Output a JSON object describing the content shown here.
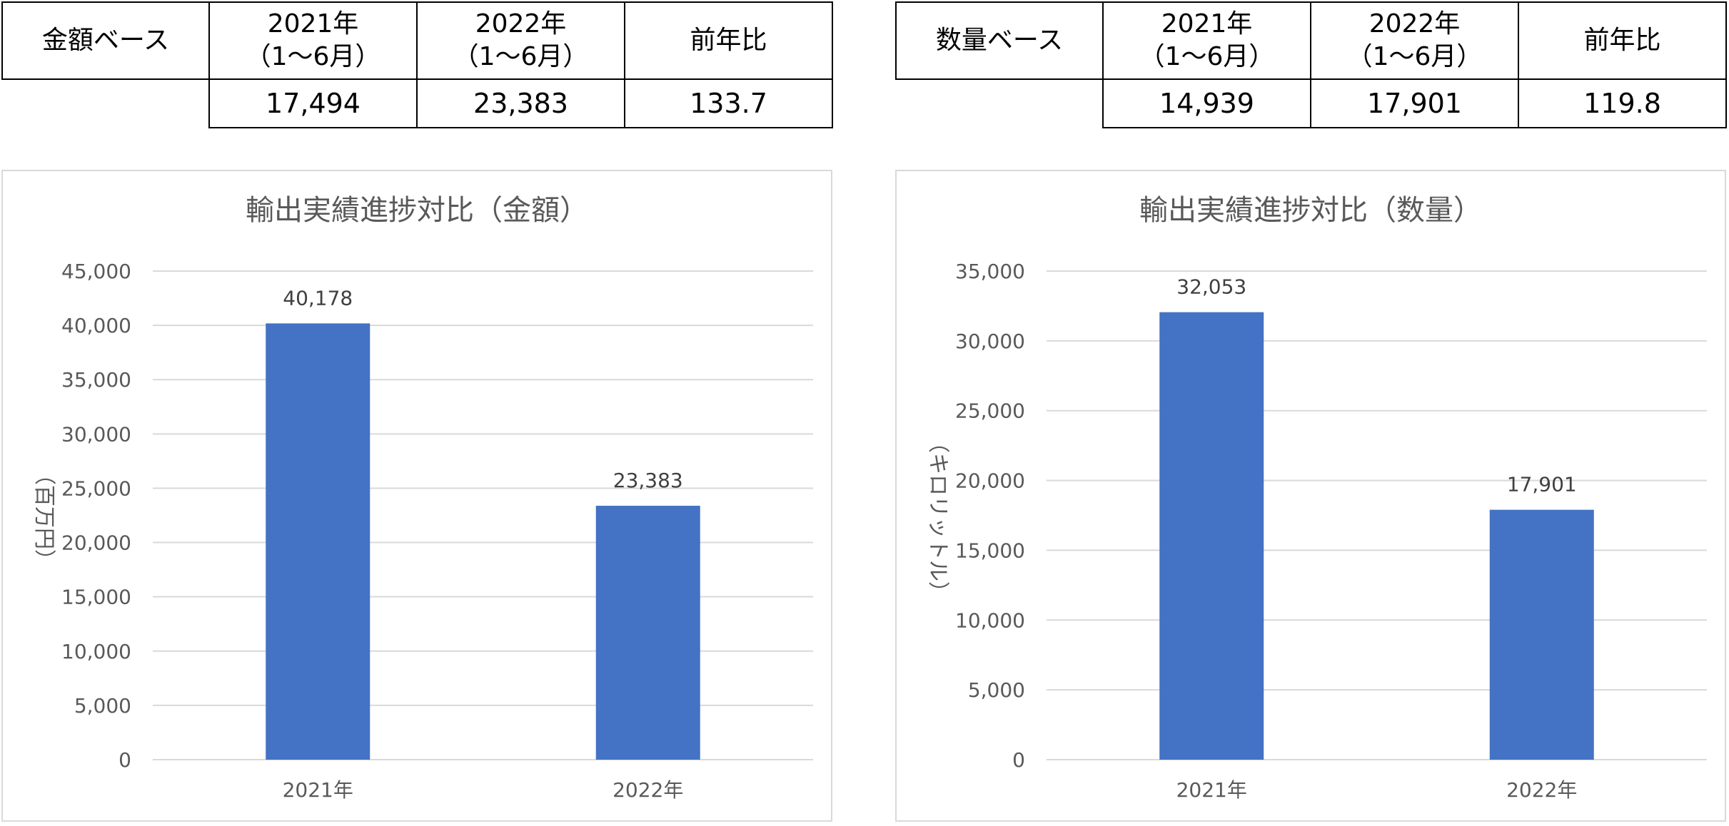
{
  "tables": [
    {
      "base_label": "金額ベース",
      "col1": [
        "2021年",
        "（1～6月）"
      ],
      "col2": [
        "2022年",
        "（1～6月）"
      ],
      "col3": "前年比",
      "values": [
        "17,494",
        "23,383",
        "133.7"
      ]
    },
    {
      "base_label": "数量ベース",
      "col1": [
        "2021年",
        "（1～6月）"
      ],
      "col2": [
        "2022年",
        "（1～6月）"
      ],
      "col3": "前年比",
      "values": [
        "14,939",
        "17,901",
        "119.8"
      ]
    }
  ],
  "colors": {
    "bar": "#4472c4",
    "grid": "#d9d9d9",
    "text": "#595959"
  },
  "chart_data": [
    {
      "type": "bar",
      "title": "輸出実績進捗対比（金額）",
      "ylabel": "（百万円）",
      "categories": [
        "2021年",
        "2022年"
      ],
      "values": [
        40178,
        23383
      ],
      "value_labels": [
        "40,178",
        "23,383"
      ],
      "ylim": [
        0,
        45000
      ],
      "yticks": [
        0,
        5000,
        10000,
        15000,
        20000,
        25000,
        30000,
        35000,
        40000,
        45000
      ],
      "ytick_labels": [
        "0",
        "5,000",
        "10,000",
        "15,000",
        "20,000",
        "25,000",
        "30,000",
        "35,000",
        "40,000",
        "45,000"
      ],
      "grid": true
    },
    {
      "type": "bar",
      "title": "輸出実績進捗対比（数量）",
      "ylabel": "（キロリットル）",
      "categories": [
        "2021年",
        "2022年"
      ],
      "values": [
        32053,
        17901
      ],
      "value_labels": [
        "32,053",
        "17,901"
      ],
      "ylim": [
        0,
        35000
      ],
      "yticks": [
        0,
        5000,
        10000,
        15000,
        20000,
        25000,
        30000,
        35000
      ],
      "ytick_labels": [
        "0",
        "5,000",
        "10,000",
        "15,000",
        "20,000",
        "25,000",
        "30,000",
        "35,000"
      ],
      "grid": true
    }
  ]
}
